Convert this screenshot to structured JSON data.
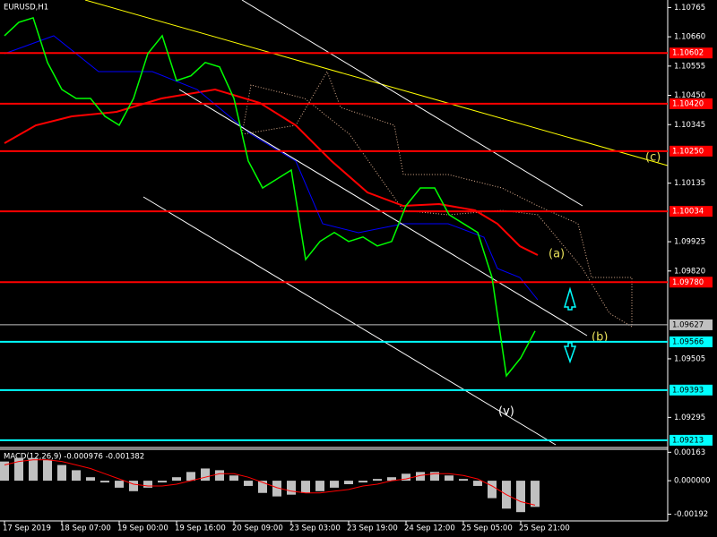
{
  "chart_data": [
    {
      "type": "line",
      "title": "EURUSD,H1",
      "color": "#00ff00",
      "x": [
        0,
        4,
        8,
        12,
        16,
        20,
        24,
        28,
        32,
        36,
        40,
        44,
        48,
        52,
        56,
        60,
        64,
        68,
        72,
        76,
        80,
        84,
        88,
        92,
        96,
        100,
        104,
        108,
        112,
        116,
        120,
        124,
        128,
        132,
        136,
        140,
        144,
        148
      ],
      "values": [
        1.10664,
        1.10712,
        1.10728,
        1.10568,
        1.10471,
        1.10439,
        1.10439,
        1.10375,
        1.10343,
        1.10439,
        1.106,
        1.10664,
        1.10503,
        1.1052,
        1.10568,
        1.10552,
        1.10439,
        1.10215,
        1.10118,
        1.1015,
        1.10182,
        1.09861,
        1.09926,
        1.09958,
        1.09926,
        1.09942,
        1.0991,
        1.09926,
        1.10054,
        1.10118,
        1.10118,
        1.10022,
        1.0999,
        1.09958,
        1.09797,
        1.09444,
        1.09508,
        1.09605
      ],
      "xlim": [
        -1.25,
        185
      ],
      "ylim": [
        1.09187,
        1.10792
      ],
      "xticks": [
        {
          "value": 0,
          "label": "17 Sep 2019"
        },
        {
          "value": 16,
          "label": "18 Sep 07:00"
        },
        {
          "value": 32,
          "label": "19 Sep 00:00"
        },
        {
          "value": 48,
          "label": "19 Sep 16:00"
        },
        {
          "value": 64,
          "label": "20 Sep 09:00"
        },
        {
          "value": 80,
          "label": "23 Sep 03:00"
        },
        {
          "value": 96,
          "label": "23 Sep 19:00"
        },
        {
          "value": 112,
          "label": "24 Sep 12:00"
        },
        {
          "value": 128,
          "label": "25 Sep 05:00"
        },
        {
          "value": 144,
          "label": "25 Sep 21:00"
        }
      ],
      "yticks": [
        1.10765,
        {
          "value": 1.1066,
          "label": "1.10660"
        },
        1.10555,
        {
          "value": 1.1045,
          "label": "1.10450"
        },
        1.10345,
        1.10135,
        1.09925,
        {
          "value": 1.0982,
          "label": "1.09820"
        },
        1.09505,
        1.09295
      ],
      "levels": [
        {
          "value": 1.10602,
          "label": "1.10602",
          "color": "#ff0000"
        },
        {
          "value": 1.1042,
          "label": "1.10420",
          "color": "#ff0000"
        },
        {
          "value": 1.1025,
          "label": "1.10250",
          "color": "#ff0000"
        },
        {
          "value": 1.10034,
          "label": "1.10034",
          "color": "#ff0000"
        },
        {
          "value": 1.0978,
          "label": "1.09780",
          "color": "#ff0000"
        },
        {
          "value": 1.09627,
          "label": "1.09627",
          "color": "#c0c0c0"
        },
        {
          "value": 1.09566,
          "label": "1.09566",
          "color": "#00ffff"
        },
        {
          "value": 1.09393,
          "label": "1.09393",
          "color": "#00ffff"
        },
        {
          "value": 1.09213,
          "label": "1.09213",
          "color": "#00ffff"
        }
      ],
      "annotations": [
        "(a)",
        "(b)",
        "(c)",
        "(v)"
      ]
    },
    {
      "type": "macd",
      "title": "MACD(12,26,9) -0.000976 -0.001382",
      "x": [
        0,
        4,
        8,
        12,
        16,
        20,
        24,
        28,
        32,
        36,
        40,
        44,
        48,
        52,
        56,
        60,
        64,
        68,
        72,
        76,
        80,
        84,
        88,
        92,
        96,
        100,
        104,
        108,
        112,
        116,
        120,
        124,
        128,
        132,
        136,
        140,
        144,
        148
      ],
      "series": [
        {
          "color": "#c0c0c0",
          "values": [
            0.0011,
            0.0013,
            0.0013,
            0.0012,
            0.0009,
            0.0006,
            0.0002,
            -0.0001,
            -0.0004,
            -0.0006,
            -0.0004,
            -0.0001,
            0.0002,
            0.0005,
            0.0007,
            0.0006,
            0.0003,
            -0.0003,
            -0.0007,
            -0.0009,
            -0.0008,
            -0.0007,
            -0.0006,
            -0.0004,
            -0.0002,
            -0.0001,
            0.0001,
            0.0002,
            0.0004,
            0.0005,
            0.0005,
            0.0003,
            0.0001,
            -0.0003,
            -0.001,
            -0.0016,
            -0.0018,
            -0.0015
          ]
        },
        {
          "color": "#ff0000",
          "values": [
            0.0009,
            0.0011,
            0.0012,
            0.0012,
            0.0011,
            0.0009,
            0.0007,
            0.0004,
            0.0001,
            -0.0002,
            -0.0003,
            -0.0003,
            -0.0002,
            0,
            0.0002,
            0.0004,
            0.0004,
            0.0002,
            -0.0001,
            -0.0004,
            -0.0006,
            -0.0007,
            -0.0007,
            -0.0006,
            -0.0005,
            -0.0003,
            -0.0002,
            0,
            0.0001,
            0.0003,
            0.0004,
            0.0004,
            0.0003,
            0.0001,
            -0.0003,
            -0.0008,
            -0.0012,
            -0.0014
          ]
        }
      ],
      "xlim": [
        -1.25,
        185
      ],
      "ylim": [
        -0.0022,
        0.0018
      ],
      "yticks": [
        0.00163,
        {
          "value": 0,
          "label": "0.000000"
        },
        -0.00192
      ]
    }
  ]
}
